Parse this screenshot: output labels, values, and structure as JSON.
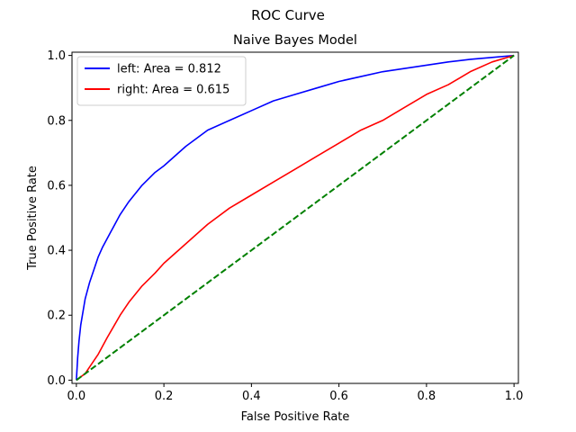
{
  "chart_data": {
    "type": "line",
    "suptitle": "ROC Curve",
    "title": "Naive Bayes Model",
    "xlabel": "False Positive Rate",
    "ylabel": "True Positive Rate",
    "xlim": [
      -0.01,
      1.01
    ],
    "ylim": [
      -0.01,
      1.01
    ],
    "xticks": [
      "0.0",
      "0.2",
      "0.4",
      "0.6",
      "0.8",
      "1.0"
    ],
    "yticks": [
      "0.0",
      "0.2",
      "0.4",
      "0.6",
      "0.8",
      "1.0"
    ],
    "grid": false,
    "legend_position": "top-left",
    "series": [
      {
        "name": "left: Area = 0.812",
        "color": "#0000ff",
        "style": "solid",
        "x": [
          0,
          0.003,
          0.006,
          0.01,
          0.015,
          0.02,
          0.03,
          0.04,
          0.05,
          0.06,
          0.08,
          0.1,
          0.12,
          0.15,
          0.18,
          0.2,
          0.25,
          0.3,
          0.35,
          0.4,
          0.45,
          0.5,
          0.55,
          0.6,
          0.65,
          0.7,
          0.75,
          0.8,
          0.85,
          0.9,
          0.95,
          1.0
        ],
        "y": [
          0,
          0.07,
          0.12,
          0.17,
          0.21,
          0.25,
          0.3,
          0.34,
          0.38,
          0.41,
          0.46,
          0.51,
          0.55,
          0.6,
          0.64,
          0.66,
          0.72,
          0.77,
          0.8,
          0.83,
          0.86,
          0.88,
          0.9,
          0.92,
          0.935,
          0.95,
          0.96,
          0.97,
          0.98,
          0.988,
          0.994,
          1.0
        ]
      },
      {
        "name": "right: Area = 0.615",
        "color": "#ff0000",
        "style": "solid",
        "x": [
          0,
          0.01,
          0.02,
          0.03,
          0.05,
          0.07,
          0.1,
          0.12,
          0.15,
          0.18,
          0.2,
          0.25,
          0.3,
          0.35,
          0.4,
          0.45,
          0.5,
          0.55,
          0.6,
          0.65,
          0.7,
          0.75,
          0.8,
          0.85,
          0.9,
          0.95,
          1.0
        ],
        "y": [
          0,
          0.01,
          0.02,
          0.04,
          0.08,
          0.13,
          0.2,
          0.24,
          0.29,
          0.33,
          0.36,
          0.42,
          0.48,
          0.53,
          0.57,
          0.61,
          0.65,
          0.69,
          0.73,
          0.77,
          0.8,
          0.84,
          0.88,
          0.91,
          0.95,
          0.98,
          1.0
        ]
      },
      {
        "name": "",
        "color": "#008000",
        "style": "dashed",
        "x": [
          0,
          1
        ],
        "y": [
          0,
          1
        ]
      }
    ]
  }
}
